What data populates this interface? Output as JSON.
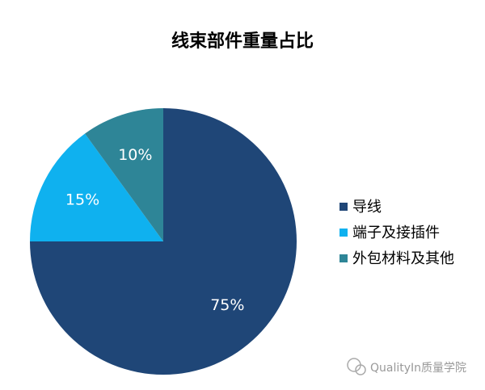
{
  "chart_data": {
    "type": "pie",
    "title": "线束部件重量占比",
    "categories": [
      "导线",
      "端子及接插件",
      "外包材料及其他"
    ],
    "values": [
      75,
      15,
      10
    ],
    "value_labels": [
      "75%",
      "15%",
      "10%"
    ],
    "colors": [
      "#1f4677",
      "#0fb1ef",
      "#2e8597"
    ],
    "legend": "right"
  },
  "watermark": "QualityIn质量学院"
}
